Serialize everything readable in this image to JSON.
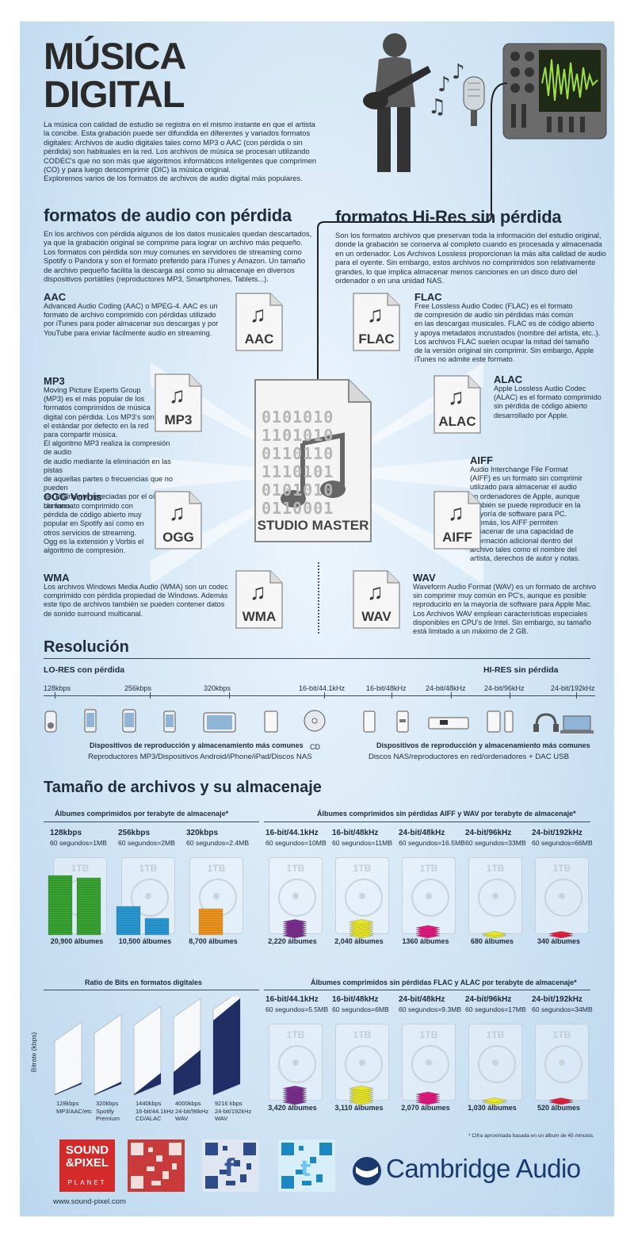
{
  "title": {
    "line1": "MÚSICA",
    "line2": "DIGITAL"
  },
  "intro": [
    "La música con calidad de estudio se registra en el mismo instante en que el artista",
    "la concibe. Esta grabación puede ser difundida en diferentes y variados formatos",
    "digitales: Archivos de audio digitales tales como  MP3 o AAC (con pérdida o sin",
    "pérdida) son habituales en la red. Los archivos de música se procesan utilizando",
    "CODEC's que no son más que  algoritmos informáticos inteligentes que comprimen",
    "(CO) y para luego descomprimir (DIC) la música original.",
    "Exploremos varios de los formatos de archivos de audio digital más populares."
  ],
  "lossy": {
    "heading": "formatos de audio con pérdida",
    "desc": [
      "En los archivos con pérdida algunos de los datos musicales quedan descartados,",
      "ya que la grabación original se comprime para lograr un archivo más pequeño.",
      "Los formatos con pérdida son muy comunes en servidores de streaming como",
      "Spotify o Pandora y son el formato preferido para iTunes y Amazon. Un tamaño",
      "de archivo pequeño facilita la descarga así como su almacenaje en diversos",
      "dispositivos portátiles (reproductores MP3, Smartphones, Tablets...)."
    ],
    "formats": [
      {
        "name": "AAC",
        "label": "AAC",
        "text": [
          "Advanced Audio Coding (AAC) o MPEG-4. AAC es un",
          "formato de archivo comprimido con pérdidas utilizado",
          "por iTunes  para poder almacenar sus descargas y por",
          "YouTube para enviar fácilmente audio en streaming."
        ]
      },
      {
        "name": "MP3",
        "label": "MP3",
        "text": [
          "Moving Picture Experts Group",
          "(MP3) es el más popular de los",
          "formatos comprimidos de música",
          "digital con pérdida. Los MP3's son",
          "el estándar por defecto en la red",
          "para compartir música.",
          "El algoritmo MP3 realiza la compresión de audio",
          "de audio mediante la eliminación en las pistas",
          "de aquellas partes o frecuencias que no pueden",
          "ser fácilmente apreciadas por el oído humano."
        ]
      },
      {
        "name": "OGG Vorbis",
        "label": "OGG",
        "text": [
          "Un formato comprimido con",
          "pérdida de código abierto muy",
          "popular en Spotify así como en",
          "otros servicios de streaming.",
          "Ogg es la extensión y Vorbis el",
          "algoritmo de compresión."
        ]
      },
      {
        "name": "WMA",
        "label": "WMA",
        "text": [
          "Los archivos Windows Media Audio (WMA) son un codec",
          "comprimido con pérdida propiedad de Windows. Además",
          "este tipo de archivos también se pueden contener datos",
          "de sonido surround multicanal."
        ]
      }
    ]
  },
  "lossless": {
    "heading": "formatos Hi-Res sin pérdida",
    "desc": [
      "Son los formatos archivos que preservan toda la información del estudio original,",
      "donde la grabación se conserva al completo cuando es procesada y almacenada",
      "en un ordenador. Los Archivos Lossless proporcionan la más alta calidad de audio",
      "para el oyente. Sin embargo, estos archivos no comprimidos son relativamente",
      "grandes, lo que implica almacenar menos canciones en un disco duro del",
      "ordenador o en una unidad NAS."
    ],
    "formats": [
      {
        "name": "FLAC",
        "label": "FLAC",
        "text": [
          "Free Lossless Audio Codec (FLAC) es el formato",
          "de compresión de audio sin pérdidas más común",
          "en las descargas musicales. FLAC es de código abierto",
          "y apoya metadatos incrustados (nombre del artista, etc..).",
          "Los archivos FLAC suelen ocupar la mitad del tamaño",
          "de la versión original sin comprimir. Sin embargo, Apple",
          "iTunes no admite este formato."
        ]
      },
      {
        "name": "ALAC",
        "label": "ALAC",
        "text": [
          "Apple Lossless Audio Codec",
          "(ALAC) es el formato comprimido",
          "sin pérdida de código abierto",
          "desarrollado por Apple."
        ]
      },
      {
        "name": "AIFF",
        "label": "AIFF",
        "text": [
          "Audio Interchange File Format",
          "(AIFF) es un formato sin comprimir",
          "utilizado para almacenar el audio",
          "en ordenadores de Apple, aunque",
          "también se puede reproducir en la",
          "mayoría de software para PC.",
          "Además, los AIFF permiten",
          "almacenar de una capacidad de",
          "información adicional dentro del",
          "archivo tales como el nombre del",
          "artista, derechos de autor y notas."
        ]
      },
      {
        "name": "WAV",
        "label": "WAV",
        "text": [
          "Waveform Audio Format (WAV) es un formato de archivo",
          "sin comprimir muy común en PC's, aunque es posible",
          "reproducirlo en la mayoría de software para Apple Mac.",
          "Los Archivos WAV emplean características especiales",
          "disponibles en CPU's de Intel. Sin embargo, su tamaño",
          "está limitado a un máximo de 2 GB."
        ]
      }
    ]
  },
  "studio_master": {
    "label": "STUDIO MASTER",
    "binary": [
      "0101010",
      "1101010",
      "0110110",
      "1110101",
      "0101010",
      "0110001"
    ]
  },
  "resolution": {
    "heading": "Resolución",
    "lo_label": "LO-RES con pérdida",
    "hi_label": "HI-RES sin pérdida",
    "ticks": [
      "128kbps",
      "256kbps",
      "320kbps",
      "16-bit/44.1kHz",
      "16-bit/48kHz",
      "24-bit/48kHz",
      "24-bit/96kHz",
      "24-bit/192kHz"
    ],
    "left_caption": "Dispositivos de reproducción y almacenamiento más comunes",
    "left_sub": "Reproductores MP3/Dispositivos Android/iPhone/iPad/Discos NAS",
    "cd": "CD",
    "right_caption": "Dispositivos de reproducción y almacenamiento más comunes",
    "right_sub": "Discos NAS/reproductores en red/ordenadores + DAC USB"
  },
  "storage": {
    "heading": "Tamaño de archivos y su almacenaje",
    "compressed_title": "Álbumes comprimidos por terabyte de almacenaje*",
    "lossless_title": "Álbumes comprimidos sin pérdidas AIFF y WAV por terabyte de almacenaje*",
    "flac_title": "Álbumes comprimidos sin pérdidas FLAC y ALAC por terabyte de almacenaje*",
    "tb_label": "1TB",
    "compressed": [
      {
        "rate": "128kbps",
        "size": "60 segundos=1MB",
        "albums": "20,900 álbumes",
        "color": "#3aa634",
        "count": 20900
      },
      {
        "rate": "256kbps",
        "size": "60 segundos=2MB",
        "albums": "10,500 álbumes",
        "color": "#2a9bd6",
        "count": 10500
      },
      {
        "rate": "320kbps",
        "size": "60 segundos=2.4MB",
        "albums": "8,700 álbumes",
        "color": "#f0961e",
        "count": 8700
      }
    ],
    "lossless": [
      {
        "rate": "16-bit/44.1kHz",
        "size": "60 segundos=10MB",
        "albums": "2,220 álbumes",
        "color": "#7a2f8e",
        "count": 2220
      },
      {
        "rate": "16-bit/48kHz",
        "size": "60 segundos=11MB",
        "albums": "2,040 álbumes",
        "color": "#e8e62a",
        "count": 2040
      },
      {
        "rate": "24-bit/48kHz",
        "size": "60 segundos=16.5MB",
        "albums": "1360 álbumes",
        "color": "#e0197f",
        "count": 1360
      },
      {
        "rate": "24-bit/96kHz",
        "size": "60 segundos=33MB",
        "albums": "680 álbumes",
        "color": "#e8e62a",
        "count": 680
      },
      {
        "rate": "24-bit/192kHz",
        "size": "60 segundos=66MB",
        "albums": "340 álbumes",
        "color": "#e01f3d",
        "count": 340
      }
    ],
    "flac": [
      {
        "rate": "16-bit/44.1kHz",
        "size": "60 segundos=5.5MB",
        "albums": "3,420 álbumes",
        "color": "#7a2f8e",
        "count": 3420
      },
      {
        "rate": "16-bit/48kHz",
        "size": "60 segundos=6MB",
        "albums": "3,110 álbumes",
        "color": "#e8e62a",
        "count": 3110
      },
      {
        "rate": "24-bit/48kHz",
        "size": "60 segundos=9.3MB",
        "albums": "2,070 álbumes",
        "color": "#e0197f",
        "count": 2070
      },
      {
        "rate": "24-bit/96kHz",
        "size": "60 segundos=17MB",
        "albums": "1,030 álbumes",
        "color": "#e8e62a",
        "count": 1030
      },
      {
        "rate": "24-bit/192kHz",
        "size": "60 segundos=34MB",
        "albums": "520 álbumes",
        "color": "#e01f3d",
        "count": 520
      }
    ],
    "footnote": "* Cifra aproximada basada en un álbum de 45 minutos."
  },
  "bitrate": {
    "title": "Ratio de Bits en formatos digitales",
    "axis": "Bitrate (kbps)",
    "bars": [
      {
        "kbps": 128,
        "lines": [
          "128kbps",
          "MP3/AAC/etc"
        ]
      },
      {
        "kbps": 320,
        "lines": [
          "320kbps",
          "Spotify",
          "Premium"
        ]
      },
      {
        "kbps": 1440,
        "lines": [
          "1440kbps",
          "16-bit/44.1kHz",
          "CD/ALAC"
        ]
      },
      {
        "kbps": 4000,
        "lines": [
          "4000kbps",
          "24-bit/96kHz",
          "WAV"
        ]
      },
      {
        "kbps": 9216,
        "lines": [
          "9216 kbps",
          "24-bit/192kHz",
          "WAV"
        ]
      }
    ],
    "max": 9216
  },
  "footer": {
    "logo_top": "SOUND",
    "logo_mid": "&PIXEL",
    "logo_bottom": "PLANET",
    "url": "www.sound-pixel.com",
    "brand": "Cambridge Audio"
  },
  "colors": {
    "accent": "#1a3a6e",
    "background": "#d6e8f6"
  }
}
